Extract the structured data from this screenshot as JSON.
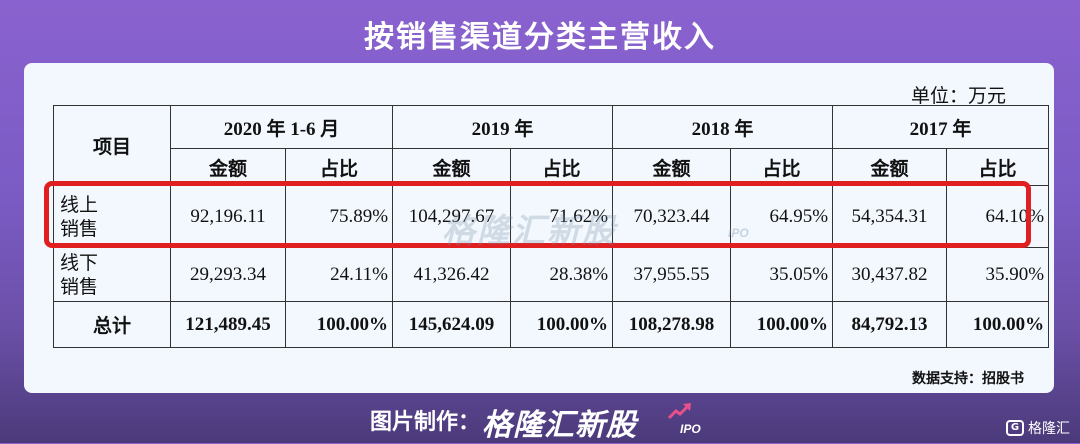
{
  "title": "按销售渠道分类主营收入",
  "unit": "单位：万元",
  "table": {
    "item_header": "项目",
    "periods": [
      "2020 年 1-6 月",
      "2019 年",
      "2018 年",
      "2017 年"
    ],
    "sub_headers": {
      "amount": "金额",
      "ratio": "占比"
    },
    "rows": [
      {
        "label_line1": "线上",
        "label_line2": "销售",
        "cells": [
          "92,196.11",
          "75.89%",
          "104,297.67",
          "71.62%",
          "70,323.44",
          "64.95%",
          "54,354.31",
          "64.10%"
        ]
      },
      {
        "label_line1": "线下",
        "label_line2": "销售",
        "cells": [
          "29,293.34",
          "24.11%",
          "41,326.42",
          "28.38%",
          "37,955.55",
          "35.05%",
          "30,437.82",
          "35.90%"
        ]
      },
      {
        "label": "总计",
        "cells": [
          "121,489.45",
          "100.00%",
          "145,624.09",
          "100.00%",
          "108,278.98",
          "100.00%",
          "84,792.13",
          "100.00%"
        ]
      }
    ]
  },
  "watermark": {
    "text": "格隆汇新股",
    "ipo": "IPO"
  },
  "source": "数据支持：招股书",
  "footer": {
    "prefix": "图片制作：",
    "brand": "格隆汇新股",
    "ipo": "IPO"
  },
  "corner": {
    "icon_text": "G",
    "label": "格隆汇"
  },
  "colors": {
    "highlight": "#e02020",
    "card_bg": "#f2f8fd"
  }
}
